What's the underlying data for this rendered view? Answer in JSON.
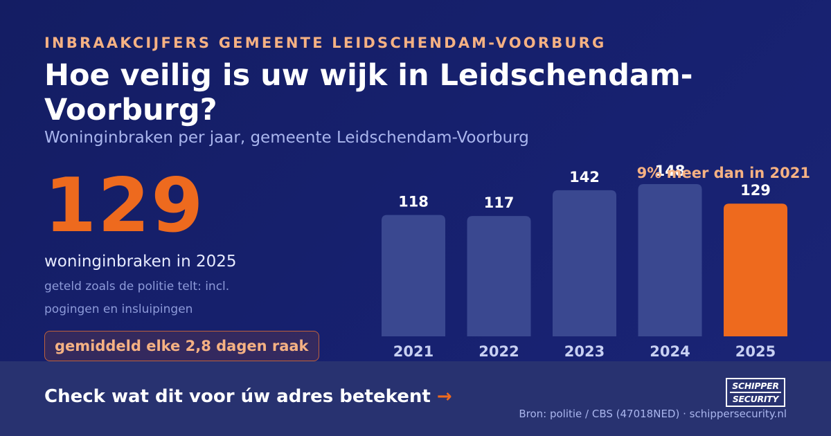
{
  "header": {
    "eyebrow": "INBRAAKCIJFERS GEMEENTE LEIDSCHENDAM-VOORBURG",
    "title": "Hoe veilig is uw wijk in Leidschendam-Voorburg?",
    "subtitle": "Woninginbraken per jaar, gemeente Leidschendam-Voorburg"
  },
  "highlight": {
    "value": "129",
    "caption": "woninginbraken in 2025",
    "note": "geteld zoals de politie telt: incl. pogingen en insluipingen",
    "badge": "gemiddeld elke 2,8 dagen raak"
  },
  "chart_note": "9% meer dan in 2021",
  "chart_data": {
    "type": "bar",
    "categories": [
      "2021",
      "2022",
      "2023",
      "2024",
      "2025"
    ],
    "values": [
      118,
      117,
      142,
      148,
      129
    ],
    "title": "",
    "xlabel": "",
    "ylabel": "",
    "ylim": [
      0,
      148
    ],
    "grid": false,
    "colors": {
      "default_bar": "#3a4890",
      "highlight_bar": "#ee6a1e",
      "highlight_category": "2025",
      "value_label": "#ffffff",
      "category_label": "#c8d0f2"
    }
  },
  "footer": {
    "cta": "Check wat dit voor úw adres betekent",
    "cta_arrow": "→",
    "source": "Bron: politie / CBS (47018NED) · schippersecurity.nl",
    "logo_line1": "SCHIPPER",
    "logo_line2": "SECURITY"
  },
  "colors": {
    "accent": "#ee6a1e",
    "accent_light": "#f5b183",
    "background": "#151e66",
    "footer_background": "#283270"
  }
}
